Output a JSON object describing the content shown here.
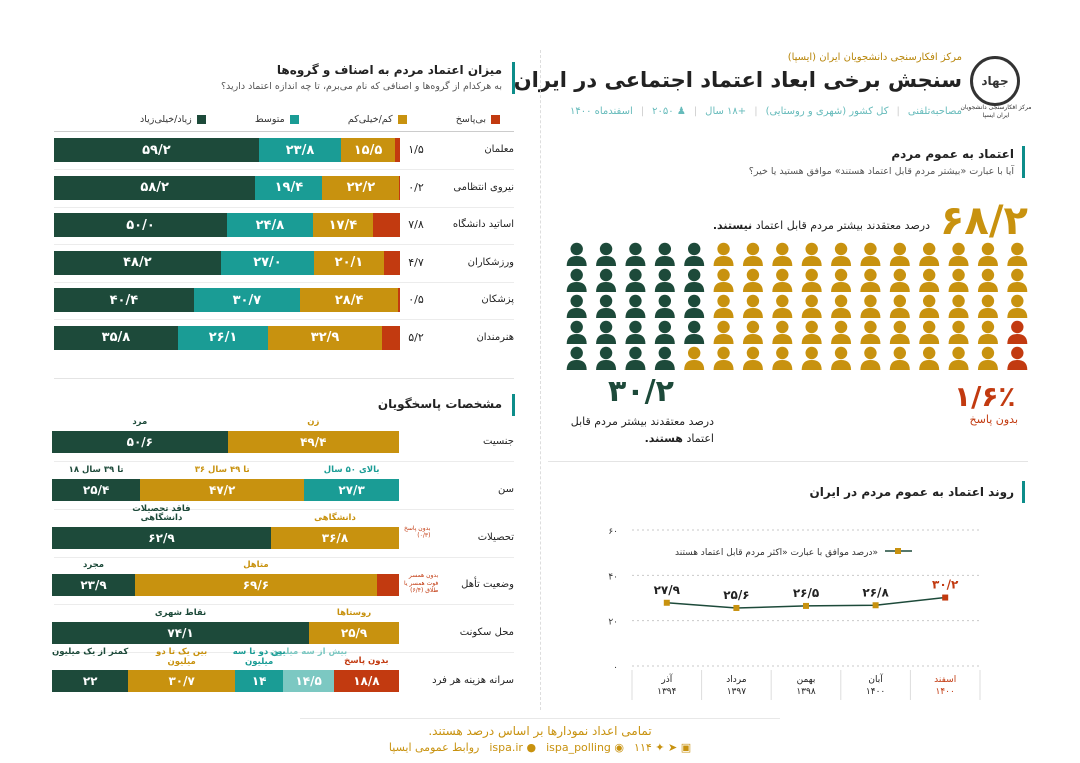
{
  "header": {
    "org": "مرکز افکارسنجی دانشجویان ایران (ایسپا)",
    "title": "سنجش برخی ابعاد اعتماد اجتماعی در ایران",
    "meta": [
      "اسفندماه ۱۴۰۰",
      "۲۰۵۰",
      "+۱۸ سال",
      "کل کشور (شهری و روستایی)",
      "مصاحبه‌تلفنی"
    ],
    "logo_text": "جهاد",
    "logo_caption": "مرکز افکارسنجی دانشجویان ایران ایسپا"
  },
  "colors": {
    "dark": "#1d4a3a",
    "teal": "#1a9c95",
    "gold": "#c8920f",
    "red": "#c23a10",
    "light_teal": "#7cc8c2"
  },
  "groups": {
    "title": "میزان اعتماد مردم به اصناف و گروه‌ها",
    "subtitle": "به هرکدام از گروه‌ها و اصنافی که نام می‌برم، تا چه اندازه اعتماد دارید؟",
    "legend": [
      "زیاد/خیلی‌زیاد",
      "متوسط",
      "کم/خیلی‌کم",
      "بی‌پاسخ"
    ]
  },
  "general": {
    "title": "اعتماد به عموم مردم",
    "subtitle": "آیا با عبارت «بیشتر مردم قابل اعتماد هستند» موافق هستید یا خیر؟",
    "no_value": "۶۸/۲",
    "no_text_pre": "درصد معتقدند بیشتر مردم قابل اعتماد",
    "no_text_bold": "نیستند.",
    "yes_value": "۳۰/۲",
    "yes_text_line1": "درصد معتقدند بیشتر مردم قابل",
    "yes_text_pre": "اعتماد",
    "yes_text_bold": "هستند.",
    "nr_value": "۱/۶٪",
    "nr_text": "بدون پاسخ",
    "icon_grid": {
      "rows": 5,
      "cols": 16,
      "gold": 54,
      "red": 2,
      "dark": 24
    }
  },
  "trend": {
    "title": "روند اعتماد به عموم مردم در ایران",
    "legend": "درصد موافق با عبارت «اکثر مردم قابل اعتماد هستند»",
    "y_ticks": [
      "۶۰",
      "۴۰",
      "۲۰",
      "۰"
    ]
  },
  "respondents": {
    "title": "مشخصات پاسخگویان",
    "rows": [
      {
        "label": "جنسیت",
        "segments": [
          {
            "value": "۴۹/۴",
            "label": "زن",
            "color": "gold",
            "w": 49.4
          },
          {
            "value": "۵۰/۶",
            "label": "مرد",
            "color": "dark",
            "w": 50.6
          }
        ]
      },
      {
        "label": "سن",
        "segments": [
          {
            "value": "۲۷/۳",
            "label": "بالای ۵۰ سال",
            "color": "teal",
            "w": 27.3
          },
          {
            "value": "۴۷/۲",
            "label": "۳۶ تا ۴۹ سال",
            "color": "gold",
            "w": 47.2
          },
          {
            "value": "۲۵/۴",
            "label": "۱۸ تا ۳۹ سال",
            "color": "dark",
            "w": 25.4
          }
        ]
      },
      {
        "label": "تحصیلات",
        "segments": [
          {
            "value": "۳۶/۸",
            "label": "دانشگاهی",
            "color": "gold",
            "w": 36.8
          },
          {
            "value": "۶۲/۹",
            "label": "فاقد تحصیلات دانشگاهی",
            "color": "dark",
            "w": 62.9
          }
        ],
        "note": [
          "بدون پاسخ",
          "(۰/۳)"
        ]
      },
      {
        "label": "وضعیت تأهل",
        "segments": [
          {
            "value": "",
            "label": "",
            "color": "red",
            "w": 6.4
          },
          {
            "value": "۶۹/۶",
            "label": "متاهل",
            "color": "gold",
            "w": 69.6
          },
          {
            "value": "۲۳/۹",
            "label": "مجرد",
            "color": "dark",
            "w": 23.9
          }
        ],
        "note": [
          "بدون همسر",
          "فوت همسر یا",
          "طلاق (۶/۴)"
        ]
      },
      {
        "label": "محل سکونت",
        "segments": [
          {
            "value": "۲۵/۹",
            "label": "روستاها",
            "color": "gold",
            "w": 25.9
          },
          {
            "value": "۷۴/۱",
            "label": "نقاط شهری",
            "color": "dark",
            "w": 74.1
          }
        ]
      },
      {
        "label": "سرانه هزینه هر فرد",
        "segments": [
          {
            "value": "۱۸/۸",
            "label": "بدون پاسخ",
            "color": "red",
            "w": 18.8
          },
          {
            "value": "۱۴/۵",
            "label": "بیش از سه میلیون",
            "color": "lteal",
            "w": 14.5
          },
          {
            "value": "۱۴",
            "label": "بین دو تا سه میلیون",
            "color": "teal",
            "w": 14
          },
          {
            "value": "۳۰/۷",
            "label": "بین یک تا دو میلیون",
            "color": "gold",
            "w": 30.7
          },
          {
            "value": "۲۲",
            "label": "کمتر از یک میلیون",
            "color": "dark",
            "w": 22
          }
        ]
      }
    ]
  },
  "footer": {
    "note": "تمامی اعداد نمودارها بر اساس درصد هستند.",
    "contact": "روابط عمومی ایسپا",
    "site": "ispa.ir",
    "handle": "ispa_polling",
    "phone": "۱۱۴"
  },
  "chart_data": [
    {
      "type": "bar",
      "title": "میزان اعتماد مردم به اصناف و گروه‌ها",
      "categories": [
        "معلمان",
        "نیروی انتظامی",
        "اساتید دانشگاه",
        "ورزشکاران",
        "پزشکان",
        "هنرمندان"
      ],
      "series": [
        {
          "name": "زیاد/خیلی‌زیاد",
          "values": [
            59.2,
            58.2,
            50.0,
            48.2,
            40.4,
            35.8
          ],
          "labels": [
            "۵۹/۲",
            "۵۸/۲",
            "۵۰/۰",
            "۴۸/۲",
            "۴۰/۴",
            "۳۵/۸"
          ]
        },
        {
          "name": "متوسط",
          "values": [
            23.8,
            19.4,
            24.8,
            27.0,
            30.7,
            26.1
          ],
          "labels": [
            "۲۳/۸",
            "۱۹/۴",
            "۲۴/۸",
            "۲۷/۰",
            "۳۰/۷",
            "۲۶/۱"
          ]
        },
        {
          "name": "کم/خیلی‌کم",
          "values": [
            15.5,
            22.2,
            17.4,
            20.1,
            28.4,
            32.9
          ],
          "labels": [
            "۱۵/۵",
            "۲۲/۲",
            "۱۷/۴",
            "۲۰/۱",
            "۲۸/۴",
            "۳۲/۹"
          ]
        },
        {
          "name": "بی‌پاسخ",
          "values": [
            1.5,
            0.2,
            7.8,
            4.7,
            0.5,
            5.2
          ],
          "labels": [
            "۱/۵",
            "۰/۲",
            "۷/۸",
            "۴/۷",
            "۰/۵",
            "۵/۲"
          ]
        }
      ],
      "legend": "top"
    },
    {
      "type": "line",
      "title": "روند اعتماد به عموم مردم در ایران",
      "x": [
        [
          "آذر",
          "۱۳۹۴"
        ],
        [
          "مرداد",
          "۱۳۹۷"
        ],
        [
          "بهمن",
          "۱۳۹۸"
        ],
        [
          "آبان",
          "۱۴۰۰"
        ],
        [
          "اسفند",
          "۱۴۰۰"
        ]
      ],
      "series": [
        {
          "name": "درصد موافق با عبارت «اکثر مردم قابل اعتماد هستند»",
          "values": [
            27.9,
            25.6,
            26.5,
            26.8,
            30.2
          ],
          "labels": [
            "۲۷/۹",
            "۲۵/۶",
            "۲۶/۵",
            "۲۶/۸",
            "۳۰/۲"
          ]
        }
      ],
      "ylim": [
        0,
        60
      ],
      "y_ticks": [
        0,
        20,
        40,
        60
      ],
      "grid": true
    }
  ]
}
